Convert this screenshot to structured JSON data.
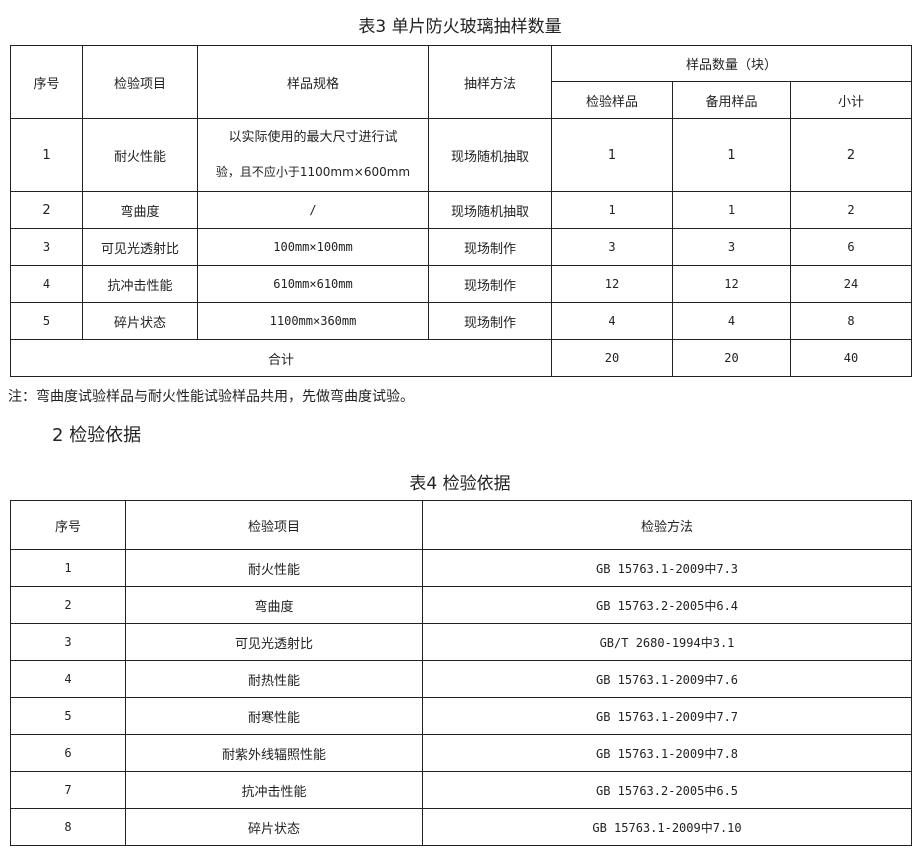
{
  "table3": {
    "title": "表3 单片防火玻璃抽样数量",
    "headers": {
      "no": "序号",
      "item": "检验项目",
      "spec": "样品规格",
      "method": "抽样方法",
      "qty": "样品数量（块）",
      "test": "检验样品",
      "spare": "备用样品",
      "subtotal": "小计"
    },
    "rows": [
      {
        "no": "1",
        "item": "耐火性能",
        "spec_line1": "以实际使用的最大尺寸进行试",
        "spec_line2": "验，且不应小于1100mm×600mm",
        "method": "现场随机抽取",
        "test": "1",
        "spare": "1",
        "subtotal": "2"
      },
      {
        "no": "2",
        "item": "弯曲度",
        "spec": "/",
        "method": "现场随机抽取",
        "test": "1",
        "spare": "1",
        "subtotal": "2"
      },
      {
        "no": "3",
        "item": "可见光透射比",
        "spec": "100mm×100mm",
        "method": "现场制作",
        "test": "3",
        "spare": "3",
        "subtotal": "6"
      },
      {
        "no": "4",
        "item": "抗冲击性能",
        "spec": "610mm×610mm",
        "method": "现场制作",
        "test": "12",
        "spare": "12",
        "subtotal": "24"
      },
      {
        "no": "5",
        "item": "碎片状态",
        "spec": "1100mm×360mm",
        "method": "现场制作",
        "test": "4",
        "spare": "4",
        "subtotal": "8"
      }
    ],
    "total": {
      "label": "合计",
      "test": "20",
      "spare": "20",
      "subtotal": "40"
    }
  },
  "note": "注：弯曲度试验样品与耐火性能试验样品共用，先做弯曲度试验。",
  "section_heading": "2 检验依据",
  "table4": {
    "title": "表4 检验依据",
    "headers": {
      "no": "序号",
      "item": "检验项目",
      "method": "检验方法"
    },
    "rows": [
      {
        "no": "1",
        "item": "耐火性能",
        "method": "GB 15763.1-2009中7.3"
      },
      {
        "no": "2",
        "item": "弯曲度",
        "method": "GB 15763.2-2005中6.4"
      },
      {
        "no": "3",
        "item": "可见光透射比",
        "method": "GB/T 2680-1994中3.1"
      },
      {
        "no": "4",
        "item": "耐热性能",
        "method": "GB 15763.1-2009中7.6"
      },
      {
        "no": "5",
        "item": "耐寒性能",
        "method": "GB 15763.1-2009中7.7"
      },
      {
        "no": "6",
        "item": "耐紫外线辐照性能",
        "method": "GB 15763.1-2009中7.8"
      },
      {
        "no": "7",
        "item": "抗冲击性能",
        "method": "GB 15763.2-2005中6.5"
      },
      {
        "no": "8",
        "item": "碎片状态",
        "method": "GB 15763.1-2009中7.10"
      }
    ]
  }
}
